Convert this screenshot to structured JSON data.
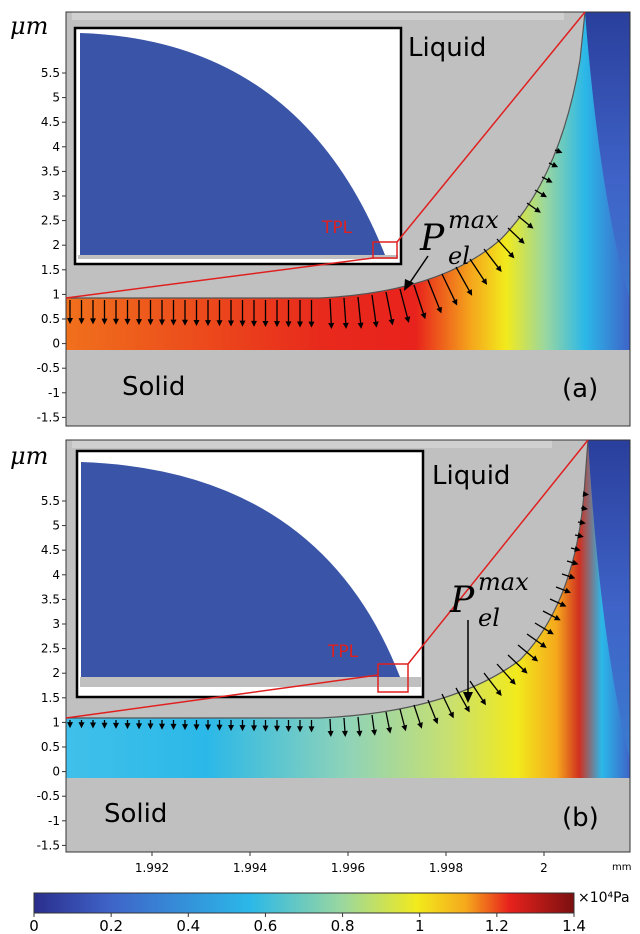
{
  "panels": [
    {
      "id": "a",
      "panel_label": "(a)",
      "axis_unit_label": "μm",
      "liquid_label": "Liquid",
      "solid_label": "Solid",
      "tpl_label": "TPL",
      "pressure_label": {
        "symbol": "P",
        "subscript": "el",
        "superscript": "max"
      },
      "y_ticks": [
        "5.5",
        "5",
        "4.5",
        "4",
        "3.5",
        "3",
        "2.5",
        "2",
        "1.5",
        "1",
        "0.5",
        "0",
        "-0.5",
        "-1",
        "-1.5"
      ]
    },
    {
      "id": "b",
      "panel_label": "(b)",
      "axis_unit_label": "μm",
      "liquid_label": "Liquid",
      "solid_label": "Solid",
      "tpl_label": "TPL",
      "pressure_label": {
        "symbol": "P",
        "subscript": "el",
        "superscript": "max"
      },
      "y_ticks": [
        "5.5",
        "5",
        "4.5",
        "4",
        "3.5",
        "3",
        "2.5",
        "2",
        "1.5",
        "1",
        "0.5",
        "0",
        "-0.5",
        "-1",
        "-1.5"
      ]
    }
  ],
  "x_axis": {
    "ticks": [
      "1.992",
      "1.994",
      "1.996",
      "1.998",
      "2"
    ],
    "unit": "mm"
  },
  "colorbar": {
    "ticks": [
      "0",
      "0.2",
      "0.4",
      "0.6",
      "0.8",
      "1",
      "1.2",
      "1.4"
    ],
    "unit_label": "×10⁴Pa",
    "colors": [
      "#2a2e8c",
      "#3f63c8",
      "#2bb8e8",
      "#9ad7a0",
      "#f2ea1c",
      "#f5a81c",
      "#e8221c",
      "#7a1010"
    ]
  },
  "colors": {
    "substrate_gray": "#c0c0c0",
    "drop_blue": "#3a55a8",
    "tpl_red": "#e02020"
  }
}
